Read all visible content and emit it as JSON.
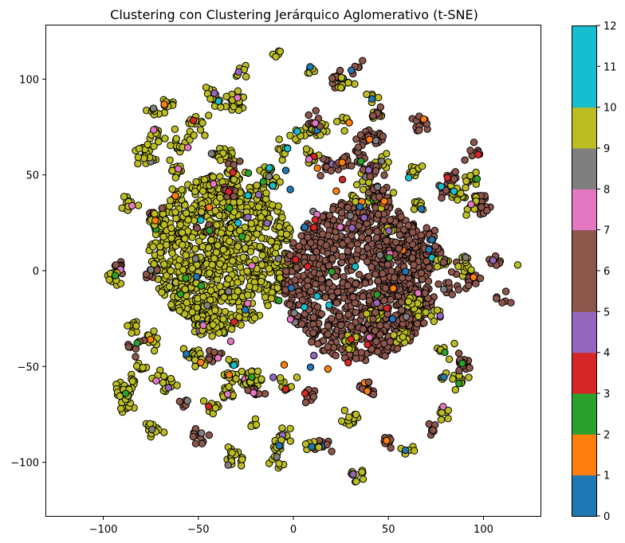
{
  "chart_data": {
    "type": "scatter",
    "title": "Clustering con Clustering Jerárquico Aglomerativo (t-SNE)",
    "xlabel": "",
    "ylabel": "",
    "xlim": [
      -130,
      130
    ],
    "ylim": [
      -128,
      128
    ],
    "xticks": [
      -100,
      -50,
      0,
      50,
      100
    ],
    "yticks": [
      -100,
      -50,
      0,
      50,
      100
    ],
    "grid": false,
    "colorbar": {
      "ticks": [
        0,
        1,
        2,
        3,
        4,
        5,
        6,
        7,
        8,
        9,
        10,
        11,
        12
      ],
      "colors": [
        "#1f77b4",
        "#ff7f0e",
        "#2ca02c",
        "#d62728",
        "#9467bd",
        "#8c564b",
        "#e377c2",
        "#7f7f7f",
        "#bcbd22",
        "#17becf"
      ]
    },
    "point_edge_color": "#000000",
    "point_count_approx": 3400,
    "clusters": [
      {
        "label": 10,
        "color": "#bcbd22",
        "description_region": "left dense core",
        "center": [
          -38,
          10
        ],
        "radius": 38
      },
      {
        "label": 6,
        "color": "#8c564b",
        "description_region": "right dense core",
        "center": [
          35,
          -5
        ],
        "radius": 40
      },
      {
        "label": 0,
        "color": "#1f77b4",
        "description_region": "scattered small groups"
      },
      {
        "label": 1,
        "color": "#ff7f0e",
        "description_region": "scattered small groups"
      },
      {
        "label": 2,
        "color": "#2ca02c",
        "description_region": "scattered small groups"
      },
      {
        "label": 3,
        "color": "#d62728",
        "description_region": "scattered small groups"
      },
      {
        "label": 4,
        "color": "#9467bd",
        "description_region": "scattered small groups"
      },
      {
        "label": 7,
        "color": "#e377c2",
        "description_region": "scattered small groups"
      },
      {
        "label": 8,
        "color": "#7f7f7f",
        "description_region": "scattered small groups"
      },
      {
        "label": 9,
        "color": "#17becf",
        "description_region": "scattered small groups"
      }
    ]
  }
}
